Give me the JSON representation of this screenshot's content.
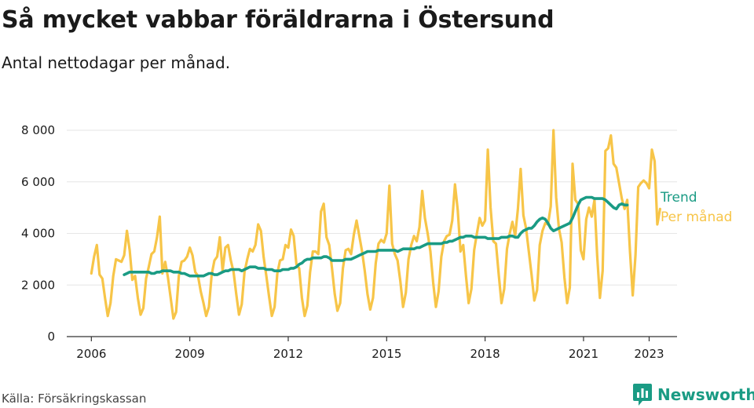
{
  "header": {
    "title": "Så mycket vabbar föräldrarna i Östersund",
    "subtitle": "Antal nettodagar per månad."
  },
  "footer": {
    "source": "Källa: Försäkringskassan",
    "brand": "Newsworthy"
  },
  "colors": {
    "monthly": "#f7c548",
    "trend": "#1a9b84",
    "axis": "#333333",
    "grid": "#e6e6e6",
    "brand": "#1a9b84"
  },
  "chart_data": {
    "type": "line",
    "title": "Så mycket vabbar föräldrarna i Östersund",
    "subtitle": "Antal nettodagar per månad.",
    "xlabel": "",
    "ylabel": "",
    "xlim": [
      2005.25,
      2023.85
    ],
    "ylim": [
      0,
      8000
    ],
    "grid": "horizontal",
    "x_ticks": [
      2006,
      2009,
      2012,
      2015,
      2018,
      2021,
      2023
    ],
    "x_tick_labels": [
      "2006",
      "2009",
      "2012",
      "2015",
      "2018",
      "2021",
      "2023"
    ],
    "y_ticks": [
      0,
      2000,
      4000,
      6000,
      8000
    ],
    "y_tick_labels": [
      "0",
      "2 000",
      "4 000",
      "6 000",
      "8 000"
    ],
    "legend": "right-end labels",
    "series": [
      {
        "name": "Per månad",
        "color": "#f7c548",
        "start": 2006.0,
        "step": 0.0833333,
        "values": [
          2450,
          3100,
          3550,
          2400,
          2250,
          1500,
          800,
          1300,
          2350,
          3000,
          2950,
          2900,
          3150,
          4100,
          3350,
          2200,
          2350,
          1500,
          850,
          1100,
          2250,
          2700,
          3200,
          3300,
          3850,
          4650,
          2450,
          2900,
          2300,
          1500,
          700,
          950,
          2350,
          2900,
          2950,
          3100,
          3450,
          3150,
          2500,
          2350,
          1750,
          1300,
          800,
          1150,
          2400,
          2950,
          3100,
          3850,
          2550,
          3450,
          3550,
          2950,
          2500,
          1650,
          850,
          1250,
          2500,
          3000,
          3400,
          3300,
          3550,
          4350,
          4100,
          3100,
          2350,
          1550,
          800,
          1150,
          2450,
          2950,
          3000,
          3550,
          3450,
          4150,
          3900,
          2800,
          2650,
          1500,
          800,
          1200,
          2500,
          3300,
          3300,
          3200,
          4850,
          5150,
          3850,
          3550,
          2650,
          1650,
          1000,
          1300,
          2650,
          3350,
          3400,
          3200,
          3950,
          4500,
          3900,
          3300,
          2550,
          1650,
          1050,
          1500,
          2850,
          3600,
          3750,
          3650,
          4000,
          5850,
          3600,
          3200,
          2950,
          2150,
          1150,
          1700,
          3000,
          3550,
          3900,
          3700,
          4250,
          5650,
          4600,
          4000,
          3300,
          2100,
          1150,
          1750,
          3100,
          3700,
          3900,
          3950,
          4500,
          5900,
          4900,
          3300,
          3550,
          2350,
          1300,
          1850,
          3350,
          4000,
          4600,
          4300,
          4500,
          7250,
          5000,
          3700,
          3600,
          2400,
          1300,
          1850,
          3400,
          4000,
          4450,
          3900,
          4950,
          6500,
          4700,
          4200,
          3300,
          2400,
          1400,
          1800,
          3550,
          4100,
          4400,
          4350,
          5050,
          8000,
          5400,
          4200,
          3650,
          2300,
          1300,
          1900,
          6700,
          5300,
          5150,
          3350,
          3000,
          4550,
          5000,
          4650,
          5300,
          3150,
          1500,
          2550,
          7200,
          7300,
          7800,
          6700,
          6550,
          5950,
          5350,
          4950,
          5300,
          3300,
          1600,
          3150,
          5800,
          5950,
          6050,
          5950,
          5750,
          7250,
          6800,
          4350,
          4950
        ]
      },
      {
        "name": "Trend",
        "color": "#1a9b84",
        "start": 2007.0,
        "step": 0.0833333,
        "values": [
          2400,
          2450,
          2500,
          2500,
          2500,
          2500,
          2500,
          2500,
          2500,
          2500,
          2450,
          2450,
          2500,
          2500,
          2550,
          2550,
          2550,
          2550,
          2500,
          2500,
          2500,
          2450,
          2450,
          2400,
          2350,
          2350,
          2350,
          2350,
          2350,
          2350,
          2400,
          2450,
          2450,
          2400,
          2400,
          2450,
          2500,
          2550,
          2550,
          2600,
          2600,
          2600,
          2600,
          2550,
          2600,
          2650,
          2700,
          2700,
          2700,
          2650,
          2650,
          2650,
          2600,
          2600,
          2600,
          2550,
          2550,
          2550,
          2600,
          2600,
          2600,
          2650,
          2650,
          2700,
          2800,
          2850,
          2950,
          3000,
          3000,
          3050,
          3050,
          3050,
          3050,
          3100,
          3100,
          3050,
          2950,
          2950,
          2950,
          2950,
          2950,
          3000,
          3000,
          3000,
          3050,
          3100,
          3150,
          3200,
          3250,
          3300,
          3300,
          3300,
          3300,
          3350,
          3350,
          3350,
          3350,
          3350,
          3350,
          3350,
          3300,
          3350,
          3400,
          3400,
          3400,
          3400,
          3400,
          3450,
          3450,
          3500,
          3550,
          3600,
          3600,
          3600,
          3600,
          3600,
          3600,
          3650,
          3650,
          3700,
          3700,
          3750,
          3800,
          3850,
          3850,
          3900,
          3900,
          3900,
          3850,
          3850,
          3850,
          3850,
          3850,
          3800,
          3800,
          3800,
          3800,
          3800,
          3850,
          3850,
          3850,
          3900,
          3900,
          3850,
          3850,
          4000,
          4100,
          4150,
          4200,
          4200,
          4300,
          4450,
          4550,
          4600,
          4550,
          4400,
          4200,
          4100,
          4150,
          4200,
          4250,
          4300,
          4350,
          4400,
          4600,
          4850,
          5100,
          5300,
          5350,
          5400,
          5400,
          5400,
          5350,
          5350,
          5350,
          5350,
          5300,
          5200,
          5100,
          5000,
          4950,
          5100,
          5150,
          5100,
          5100
        ]
      }
    ]
  }
}
